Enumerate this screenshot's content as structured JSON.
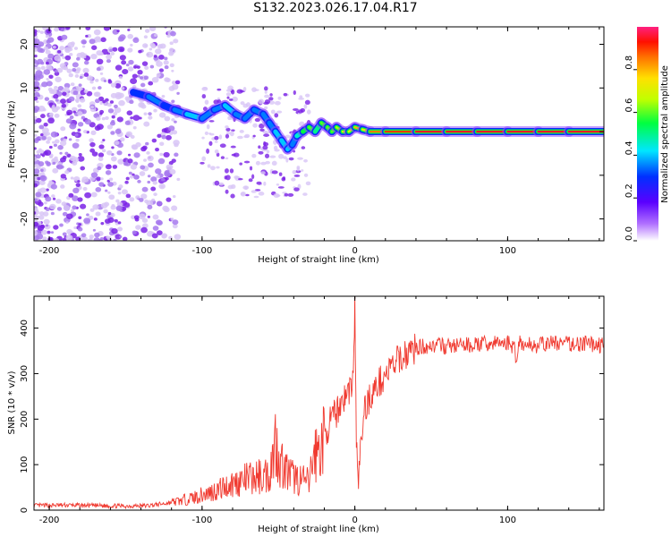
{
  "title": "S132.2023.026.17.04.R17",
  "colors": {
    "snr_line": "#f03a30",
    "scatter_faint": "#d8c6f6",
    "scatter_mid": "#a779ee",
    "scatter_dark": "#7a22e6"
  },
  "chart_data": [
    {
      "type": "heatmap",
      "xlabel": "Height of straight line (km)",
      "ylabel": "Frequency (Hz)",
      "xlim": [
        -210,
        163
      ],
      "ylim": [
        -25,
        24
      ],
      "xticks": [
        -200,
        -100,
        0,
        100
      ],
      "yticks": [
        20,
        10,
        0,
        -10,
        -20
      ],
      "xtick_labels": [
        "-200",
        "-100",
        "0",
        "100"
      ],
      "ytick_labels": [
        "20",
        "10",
        "0",
        "-10",
        "-20"
      ],
      "colorbar": {
        "label": "Normalized spectral amplitude",
        "range": [
          0,
          1
        ],
        "ticks": [
          0.0,
          0.2,
          0.4,
          0.6,
          0.8
        ],
        "tick_labels": [
          "0.0",
          "0.2",
          "0.4",
          "0.6",
          "0.8"
        ],
        "colormap": "rainbow"
      },
      "trace": {
        "x": [
          -145,
          -135,
          -125,
          -118,
          -110,
          -100,
          -92,
          -85,
          -78,
          -72,
          -66,
          -60,
          -56,
          -52,
          -48,
          -44,
          -41,
          -38,
          -34,
          -30,
          -26,
          -22,
          -18,
          -15,
          -12,
          -8,
          -4,
          0,
          5,
          10,
          20,
          40,
          60,
          80,
          100,
          120,
          140,
          163
        ],
        "y": [
          9,
          8,
          6,
          5,
          4,
          3,
          5,
          6,
          4,
          3,
          5,
          4,
          2,
          0,
          -2,
          -4,
          -3,
          -1,
          0,
          1,
          0,
          2,
          1,
          0,
          1,
          0,
          0,
          1,
          0.5,
          0,
          0,
          0,
          0,
          0,
          0,
          0,
          0,
          0
        ],
        "amplitude": [
          0.3,
          0.35,
          0.3,
          0.35,
          0.4,
          0.35,
          0.35,
          0.4,
          0.35,
          0.35,
          0.35,
          0.35,
          0.35,
          0.4,
          0.4,
          0.4,
          0.35,
          0.45,
          0.55,
          0.6,
          0.5,
          0.6,
          0.6,
          0.6,
          0.65,
          0.7,
          0.7,
          0.8,
          0.75,
          0.85,
          0.9,
          0.95,
          0.95,
          0.95,
          0.95,
          0.95,
          0.95,
          0.95
        ]
      }
    },
    {
      "type": "line",
      "xlabel": "Height of straight line (km)",
      "ylabel": "SNR (10 * v/v)",
      "xlim": [
        -210,
        163
      ],
      "ylim": [
        0,
        470
      ],
      "xticks": [
        -200,
        -100,
        0,
        100
      ],
      "yticks": [
        0,
        100,
        200,
        300,
        400
      ],
      "xtick_labels": [
        "-200",
        "-100",
        "0",
        "100"
      ],
      "ytick_labels": [
        "0",
        "100",
        "200",
        "300",
        "400"
      ],
      "series": [
        {
          "x": [
            -210,
            -190,
            -170,
            -150,
            -135,
            -125,
            -115,
            -105,
            -98,
            -92,
            -86,
            -80,
            -74,
            -68,
            -62,
            -56,
            -52,
            -49,
            -46,
            -42,
            -38,
            -34,
            -30,
            -27,
            -24,
            -21,
            -18,
            -15,
            -12,
            -9,
            -6,
            -3,
            -1,
            0,
            1,
            2,
            4,
            6,
            10,
            14,
            18,
            22,
            26,
            30,
            36,
            42,
            50,
            60,
            70,
            80,
            90,
            100,
            104,
            106,
            108,
            110,
            115,
            120,
            130,
            140,
            150,
            163
          ],
          "y": [
            10,
            11,
            10,
            9,
            10,
            14,
            20,
            28,
            35,
            42,
            50,
            58,
            65,
            70,
            74,
            80,
            150,
            110,
            90,
            75,
            70,
            65,
            60,
            120,
            130,
            150,
            180,
            200,
            215,
            240,
            250,
            270,
            290,
            455,
            150,
            60,
            140,
            220,
            250,
            270,
            290,
            305,
            320,
            335,
            350,
            358,
            362,
            360,
            362,
            364,
            366,
            368,
            360,
            330,
            380,
            360,
            365,
            362,
            368,
            365,
            366,
            362
          ]
        }
      ]
    }
  ]
}
